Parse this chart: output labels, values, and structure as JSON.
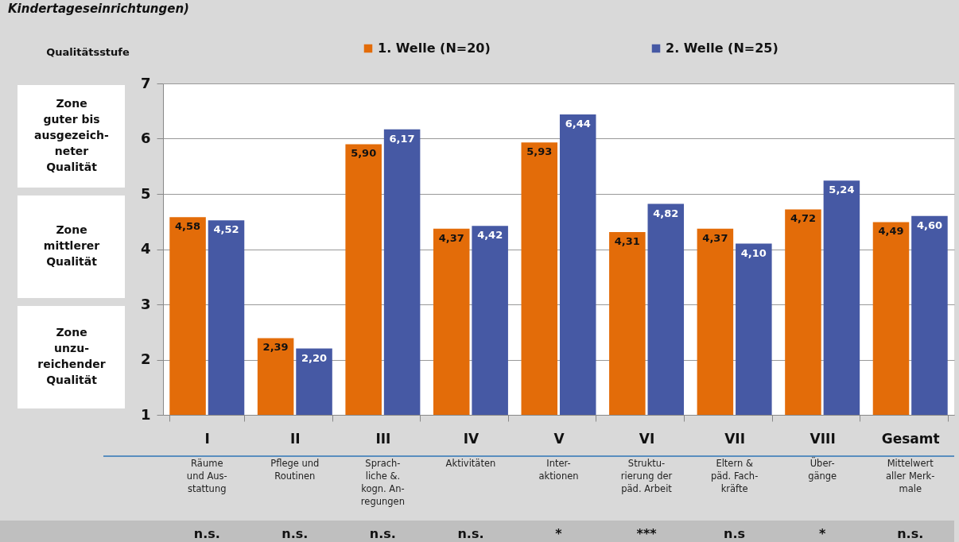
{
  "chart_data": {
    "type": "bar",
    "title": "Kindertageseinrichtungen)",
    "ylabel": "Qualitätsstufe",
    "categories": [
      "I",
      "II",
      "III",
      "IV",
      "V",
      "VI",
      "VII",
      "VIII",
      "Gesamt"
    ],
    "series": [
      {
        "name": "1. Welle (N=20)",
        "color": "#e36c09",
        "values": [
          4.58,
          2.39,
          5.9,
          4.37,
          5.93,
          4.31,
          4.37,
          4.72,
          4.49
        ],
        "value_labels": [
          "4,58",
          "2,39",
          "5,90",
          "4,37",
          "5,93",
          "4,31",
          "4,37",
          "4,72",
          "4,49"
        ]
      },
      {
        "name": "2. Welle (N=25)",
        "color": "#4659a4",
        "values": [
          4.52,
          2.2,
          6.17,
          4.42,
          6.44,
          4.82,
          4.1,
          5.24,
          4.6
        ],
        "value_labels": [
          "4,52",
          "2,20",
          "6,17",
          "4,42",
          "6,44",
          "4,82",
          "4,10",
          "5,24",
          "4,60"
        ]
      }
    ],
    "ylim": [
      1,
      7
    ],
    "yticks": [
      1,
      2,
      3,
      4,
      5,
      6,
      7
    ],
    "grid": "y",
    "legend": "top",
    "annotations": [
      "Zone\nguter bis\nausgezeich-\nneter\nQualität",
      "Zone\nmittlerer\nQualität",
      "Zone\nunzu-\nreichender\nQualität",
      "Räume\nund Aus-\nstattung",
      "Pflege und\nRoutinen",
      "Sprach-\nliche &.\nkogn. An-\nregungen",
      "Aktivitäten",
      "Inter-\naktionen",
      "Struktu-\nrierung der\npäd. Arbeit",
      "Eltern &\npäd. Fach-\nkräfte",
      "Über-\ngänge",
      "Mittelwert\naller Merk-\nmale",
      "n.s.",
      "n.s.",
      "n.s.",
      "n.s.",
      "*",
      "***",
      "n.s",
      "*",
      "n.s."
    ]
  }
}
